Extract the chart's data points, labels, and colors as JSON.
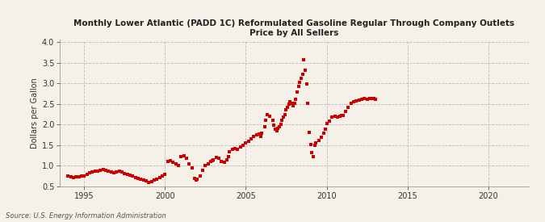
{
  "title": "Monthly Lower Atlantic (PADD 1C) Reformulated Gasoline Regular Through Company Outlets\nPrice by All Sellers",
  "ylabel": "Dollars per Gallon",
  "source": "Source: U.S. Energy Information Administration",
  "background_color": "#f5f0e8",
  "plot_background_color": "#f5f0e8",
  "marker_color": "#cc0000",
  "xlim": [
    1993.5,
    2022.5
  ],
  "ylim": [
    0.5,
    4.05
  ],
  "yticks": [
    0.5,
    1.0,
    1.5,
    2.0,
    2.5,
    3.0,
    3.5,
    4.0
  ],
  "xticks": [
    1995,
    2000,
    2005,
    2010,
    2015,
    2020
  ],
  "data": [
    [
      1994.0,
      0.75
    ],
    [
      1994.17,
      0.73
    ],
    [
      1994.33,
      0.72
    ],
    [
      1994.5,
      0.73
    ],
    [
      1994.67,
      0.74
    ],
    [
      1994.83,
      0.75
    ],
    [
      1995.0,
      0.76
    ],
    [
      1995.17,
      0.8
    ],
    [
      1995.33,
      0.83
    ],
    [
      1995.5,
      0.85
    ],
    [
      1995.67,
      0.87
    ],
    [
      1995.83,
      0.88
    ],
    [
      1996.0,
      0.9
    ],
    [
      1996.17,
      0.92
    ],
    [
      1996.33,
      0.9
    ],
    [
      1996.5,
      0.87
    ],
    [
      1996.67,
      0.85
    ],
    [
      1996.83,
      0.83
    ],
    [
      1997.0,
      0.85
    ],
    [
      1997.17,
      0.87
    ],
    [
      1997.33,
      0.85
    ],
    [
      1997.5,
      0.82
    ],
    [
      1997.67,
      0.8
    ],
    [
      1997.83,
      0.78
    ],
    [
      1998.0,
      0.75
    ],
    [
      1998.17,
      0.72
    ],
    [
      1998.33,
      0.7
    ],
    [
      1998.5,
      0.68
    ],
    [
      1998.67,
      0.65
    ],
    [
      1998.83,
      0.63
    ],
    [
      1999.0,
      0.6
    ],
    [
      1999.17,
      0.62
    ],
    [
      1999.33,
      0.65
    ],
    [
      1999.5,
      0.68
    ],
    [
      1999.67,
      0.72
    ],
    [
      1999.83,
      0.75
    ],
    [
      2000.0,
      0.8
    ],
    [
      2000.17,
      1.1
    ],
    [
      2000.33,
      1.12
    ],
    [
      2000.5,
      1.08
    ],
    [
      2000.67,
      1.05
    ],
    [
      2000.83,
      1.0
    ],
    [
      2001.0,
      1.22
    ],
    [
      2001.17,
      1.25
    ],
    [
      2001.33,
      1.18
    ],
    [
      2001.5,
      1.05
    ],
    [
      2001.67,
      0.95
    ],
    [
      2001.83,
      0.7
    ],
    [
      2001.92,
      0.65
    ],
    [
      2002.0,
      0.68
    ],
    [
      2002.17,
      0.75
    ],
    [
      2002.33,
      0.9
    ],
    [
      2002.5,
      1.0
    ],
    [
      2002.67,
      1.05
    ],
    [
      2002.83,
      1.1
    ],
    [
      2002.92,
      1.12
    ],
    [
      2003.0,
      1.15
    ],
    [
      2003.17,
      1.2
    ],
    [
      2003.33,
      1.18
    ],
    [
      2003.5,
      1.1
    ],
    [
      2003.67,
      1.08
    ],
    [
      2003.83,
      1.15
    ],
    [
      2003.92,
      1.22
    ],
    [
      2004.0,
      1.35
    ],
    [
      2004.17,
      1.4
    ],
    [
      2004.33,
      1.42
    ],
    [
      2004.5,
      1.4
    ],
    [
      2004.67,
      1.45
    ],
    [
      2004.83,
      1.5
    ],
    [
      2005.0,
      1.55
    ],
    [
      2005.17,
      1.6
    ],
    [
      2005.33,
      1.65
    ],
    [
      2005.5,
      1.72
    ],
    [
      2005.67,
      1.75
    ],
    [
      2005.83,
      1.78
    ],
    [
      2005.92,
      1.72
    ],
    [
      2006.0,
      1.8
    ],
    [
      2006.17,
      1.95
    ],
    [
      2006.25,
      2.1
    ],
    [
      2006.33,
      2.25
    ],
    [
      2006.5,
      2.2
    ],
    [
      2006.67,
      2.1
    ],
    [
      2006.75,
      1.98
    ],
    [
      2006.83,
      1.88
    ],
    [
      2006.92,
      1.85
    ],
    [
      2007.0,
      1.9
    ],
    [
      2007.08,
      1.95
    ],
    [
      2007.17,
      2.0
    ],
    [
      2007.25,
      2.1
    ],
    [
      2007.33,
      2.18
    ],
    [
      2007.42,
      2.25
    ],
    [
      2007.5,
      2.35
    ],
    [
      2007.58,
      2.42
    ],
    [
      2007.67,
      2.5
    ],
    [
      2007.75,
      2.55
    ],
    [
      2007.83,
      2.52
    ],
    [
      2007.92,
      2.45
    ],
    [
      2008.0,
      2.52
    ],
    [
      2008.08,
      2.62
    ],
    [
      2008.17,
      2.78
    ],
    [
      2008.25,
      2.92
    ],
    [
      2008.33,
      3.02
    ],
    [
      2008.42,
      3.12
    ],
    [
      2008.5,
      3.22
    ],
    [
      2008.58,
      3.57
    ],
    [
      2008.67,
      3.32
    ],
    [
      2008.75,
      2.98
    ],
    [
      2008.83,
      2.52
    ],
    [
      2008.92,
      1.82
    ],
    [
      2009.0,
      1.52
    ],
    [
      2009.08,
      1.32
    ],
    [
      2009.17,
      1.22
    ],
    [
      2009.25,
      1.5
    ],
    [
      2009.33,
      1.55
    ],
    [
      2009.5,
      1.62
    ],
    [
      2009.67,
      1.7
    ],
    [
      2009.83,
      1.8
    ],
    [
      2009.92,
      1.88
    ],
    [
      2010.0,
      2.02
    ],
    [
      2010.17,
      2.08
    ],
    [
      2010.33,
      2.18
    ],
    [
      2010.5,
      2.2
    ],
    [
      2010.67,
      2.18
    ],
    [
      2010.83,
      2.2
    ],
    [
      2010.92,
      2.22
    ],
    [
      2011.0,
      2.22
    ],
    [
      2011.17,
      2.32
    ],
    [
      2011.33,
      2.42
    ],
    [
      2011.5,
      2.52
    ],
    [
      2011.67,
      2.55
    ],
    [
      2011.83,
      2.58
    ],
    [
      2012.0,
      2.6
    ],
    [
      2012.17,
      2.62
    ],
    [
      2012.33,
      2.63
    ],
    [
      2012.5,
      2.62
    ],
    [
      2012.67,
      2.63
    ],
    [
      2012.83,
      2.64
    ],
    [
      2012.92,
      2.63
    ],
    [
      2013.0,
      2.62
    ]
  ]
}
